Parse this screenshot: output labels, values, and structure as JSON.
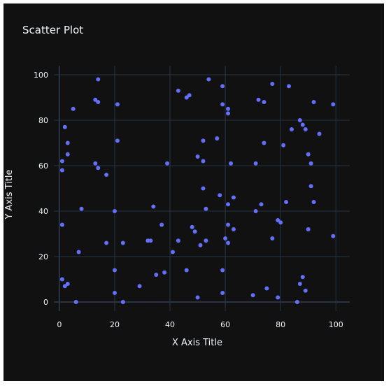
{
  "chart_data": {
    "type": "scatter",
    "title": "Scatter Plot",
    "xlabel": "X Axis Title",
    "ylabel": "Y Axis Title",
    "xlim": [
      -2,
      105
    ],
    "ylim": [
      -4,
      104
    ],
    "xticks": [
      0,
      20,
      40,
      60,
      80,
      100
    ],
    "yticks": [
      0,
      20,
      40,
      60,
      80,
      100
    ],
    "grid": true,
    "legend": "none",
    "marker_color": "#636efa",
    "background_color": "#111111",
    "grid_color": "#283442",
    "text_color": "#f2f5fa",
    "points": [
      [
        1,
        62
      ],
      [
        1,
        58
      ],
      [
        1,
        34
      ],
      [
        1,
        10
      ],
      [
        2,
        77
      ],
      [
        2,
        7
      ],
      [
        3,
        70
      ],
      [
        3,
        65
      ],
      [
        3,
        8
      ],
      [
        5,
        85
      ],
      [
        6,
        0
      ],
      [
        7,
        22
      ],
      [
        8,
        41
      ],
      [
        13,
        89
      ],
      [
        13,
        61
      ],
      [
        14,
        98
      ],
      [
        14,
        88
      ],
      [
        14,
        59
      ],
      [
        17,
        56
      ],
      [
        17,
        26
      ],
      [
        20,
        40
      ],
      [
        20,
        14
      ],
      [
        20,
        4
      ],
      [
        21,
        87
      ],
      [
        21,
        71
      ],
      [
        23,
        26
      ],
      [
        23,
        0
      ],
      [
        29,
        7
      ],
      [
        32,
        27
      ],
      [
        33,
        27
      ],
      [
        34,
        42
      ],
      [
        35,
        12
      ],
      [
        37,
        34
      ],
      [
        38,
        13
      ],
      [
        39,
        61
      ],
      [
        41,
        22
      ],
      [
        43,
        93
      ],
      [
        43,
        27
      ],
      [
        46,
        90
      ],
      [
        46,
        14
      ],
      [
        47,
        91
      ],
      [
        48,
        33
      ],
      [
        49,
        31
      ],
      [
        50,
        64
      ],
      [
        50,
        2
      ],
      [
        51,
        25
      ],
      [
        52,
        71
      ],
      [
        52,
        62
      ],
      [
        52,
        50
      ],
      [
        53,
        41
      ],
      [
        53,
        27
      ],
      [
        54,
        98
      ],
      [
        57,
        72
      ],
      [
        58,
        47
      ],
      [
        59,
        95
      ],
      [
        59,
        87
      ],
      [
        59,
        14
      ],
      [
        59,
        4
      ],
      [
        60,
        28
      ],
      [
        61,
        85
      ],
      [
        61,
        83
      ],
      [
        61,
        43
      ],
      [
        61,
        34
      ],
      [
        61,
        26
      ],
      [
        62,
        61
      ],
      [
        63,
        46
      ],
      [
        63,
        32
      ],
      [
        70,
        3
      ],
      [
        71,
        61
      ],
      [
        71,
        40
      ],
      [
        72,
        89
      ],
      [
        73,
        43
      ],
      [
        74,
        88
      ],
      [
        74,
        70
      ],
      [
        75,
        6
      ],
      [
        77,
        96
      ],
      [
        77,
        28
      ],
      [
        79,
        36
      ],
      [
        79,
        2
      ],
      [
        80,
        35
      ],
      [
        81,
        69
      ],
      [
        82,
        44
      ],
      [
        83,
        95
      ],
      [
        84,
        76
      ],
      [
        86,
        0
      ],
      [
        87,
        80
      ],
      [
        87,
        8
      ],
      [
        88,
        78
      ],
      [
        88,
        11
      ],
      [
        89,
        76
      ],
      [
        89,
        5
      ],
      [
        90,
        65
      ],
      [
        90,
        32
      ],
      [
        91,
        61
      ],
      [
        91,
        51
      ],
      [
        92,
        88
      ],
      [
        92,
        44
      ],
      [
        94,
        74
      ],
      [
        99,
        87
      ],
      [
        99,
        29
      ]
    ]
  }
}
